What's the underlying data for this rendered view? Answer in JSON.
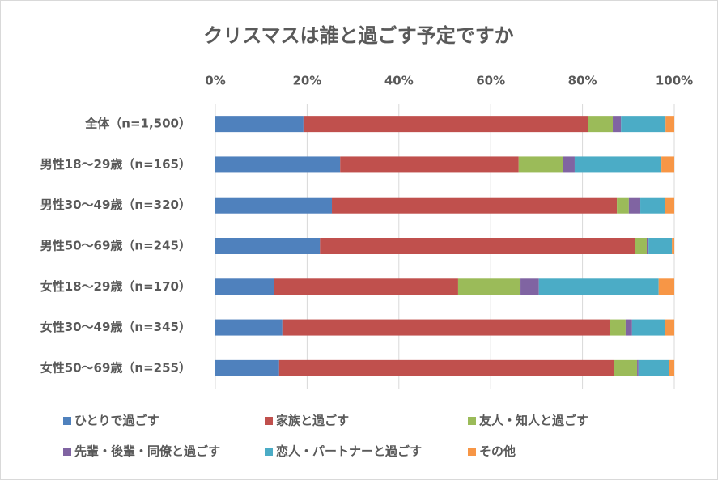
{
  "chart_data": {
    "type": "stacked-barh",
    "title": "クリスマスは誰と過ごす予定ですか",
    "categories": [
      "全体（n=1,500）",
      "男性18～29歳（n=165）",
      "男性30～49歳（n=320）",
      "男性50～69歳（n=245）",
      "女性18～29歳（n=170）",
      "女性30～49歳（n=345）",
      "女性50～69歳（n=255）"
    ],
    "series": [
      {
        "name": "ひとりで過ごす",
        "color": "#4f81bd",
        "values": [
          19.2,
          27.2,
          25.4,
          22.8,
          12.7,
          14.6,
          13.9
        ]
      },
      {
        "name": "家族と過ごす",
        "color": "#c0504d",
        "values": [
          62.1,
          38.9,
          62.1,
          68.7,
          40.2,
          71.3,
          72.9
        ]
      },
      {
        "name": "友人・知人と過ごす",
        "color": "#9bbb59",
        "values": [
          5.3,
          9.7,
          2.6,
          2.5,
          13.6,
          3.5,
          5.1
        ]
      },
      {
        "name": "先輩・後輩・同僚と過ごす",
        "color": "#8064a2",
        "values": [
          1.8,
          2.5,
          2.5,
          0.4,
          4.0,
          1.4,
          0.3
        ]
      },
      {
        "name": "恋人・パートナーと過ごす",
        "color": "#4bacc6",
        "values": [
          9.7,
          18.9,
          5.3,
          5.1,
          26.1,
          7.1,
          6.7
        ]
      },
      {
        "name": "その他",
        "color": "#f79646",
        "values": [
          1.9,
          2.8,
          2.1,
          0.5,
          3.4,
          2.1,
          1.1
        ]
      }
    ],
    "xlim": [
      0,
      100
    ],
    "xticks": [
      {
        "value": 0,
        "label": "0%"
      },
      {
        "value": 20,
        "label": "20%"
      },
      {
        "value": 40,
        "label": "40%"
      },
      {
        "value": 60,
        "label": "60%"
      },
      {
        "value": 80,
        "label": "80%"
      },
      {
        "value": 100,
        "label": "100%"
      }
    ],
    "grid": true
  }
}
